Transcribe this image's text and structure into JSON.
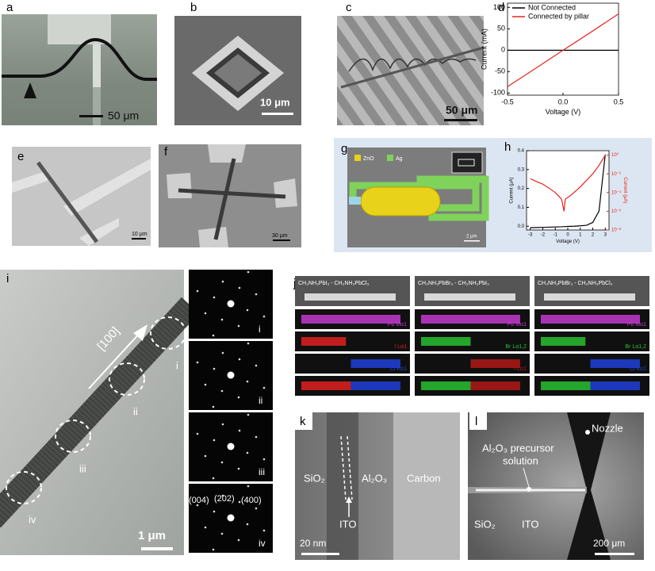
{
  "panels": {
    "a": {
      "label": "a",
      "scale_bar": "50 μm"
    },
    "b": {
      "label": "b",
      "scale_bar": "10 μm"
    },
    "c": {
      "label": "c",
      "scale_bar": "50 μm"
    },
    "e": {
      "label": "e",
      "scale_bar": "10 μm"
    },
    "f": {
      "label": "f",
      "scale_bar": "30 μm"
    },
    "g": {
      "label": "g",
      "legend": [
        "ZnO",
        "Ag"
      ],
      "scale_bar": "2 μm"
    },
    "i": {
      "label": "i",
      "direction": "[100]",
      "regions": [
        "i",
        "ii",
        "iii",
        "iv"
      ],
      "scale_bar": "1 μm",
      "saed_labels": [
        "i",
        "ii",
        "iii",
        "iv"
      ],
      "miller_indices": [
        "(004)",
        "(202)",
        "(400)"
      ]
    },
    "j": {
      "label": "j",
      "columns": [
        {
          "title": "CH₃NH₃PbI₃ - CH₃NH₃PbCl₃",
          "maps": [
            "Pb Mα1",
            "I Lα1",
            "Cl Kα1"
          ]
        },
        {
          "title": "CH₃NH₃PbBr₃ - CH₃NH₃PbI₃",
          "maps": [
            "Pb Mα1",
            "Br Lα1,2",
            "I Lα1"
          ]
        },
        {
          "title": "CH₃NH₃PbBr₃ - CH₃NH₃PbCl₃",
          "maps": [
            "Pb Mα1",
            "Br Lα1,2",
            "Cl Kα1"
          ]
        }
      ]
    },
    "k": {
      "label": "k",
      "regions": [
        "SiO₂",
        "Al₂O₃",
        "Carbon"
      ],
      "pointer": "ITO",
      "scale_bar": "20 nm"
    },
    "l": {
      "label": "l",
      "pointers": [
        "Al₂O₃ precursor",
        "solution",
        "Nozzle"
      ],
      "regions": [
        "SiO₂",
        "ITO"
      ],
      "scale_bar": "200 μm"
    }
  },
  "chart_data": [
    {
      "type": "line",
      "panel_label": "d",
      "xlabel": "Voltage (V)",
      "ylabel": "Current (mA)",
      "x": [
        -0.5,
        -0.25,
        0,
        0.25,
        0.5
      ],
      "series": [
        {
          "name": "Not Connected",
          "color": "#000000",
          "values": [
            0,
            0,
            0,
            0,
            0
          ]
        },
        {
          "name": "Connected by pillar",
          "color": "#e8231c",
          "values": [
            -85,
            -43,
            0,
            42,
            85
          ]
        }
      ],
      "xlim": [
        -0.5,
        0.5
      ],
      "xticks": [
        -0.5,
        {
          "value": 0,
          "label": "0.0"
        },
        0.5
      ],
      "ylim": [
        -105,
        110
      ],
      "yticks": [
        -100,
        -50,
        0,
        50,
        100
      ],
      "legend": "upper left"
    },
    {
      "type": "line",
      "panel_label": "h",
      "xlabel": "Voltage (V)",
      "ylabel": "Current (μA)",
      "y2label": "Current (μA)",
      "x": [
        -3,
        -2.5,
        -2,
        -1.5,
        -1,
        -0.5,
        -0.3,
        -0.2,
        0,
        0.5,
        1,
        1.5,
        2,
        2.5,
        3
      ],
      "series": [
        {
          "color": "#000000",
          "values": [
            -0.008,
            -0.007,
            -0.006,
            -0.005,
            -0.004,
            -0.003,
            -0.002,
            -0.002,
            -0.001,
            0,
            0.002,
            0.005,
            0.02,
            0.08,
            0.38
          ]
        },
        {
          "color": "#e8231c",
          "axis": "y2",
          "values": [
            0.003,
            0.0015,
            0.0008,
            0.0003,
            0.0001,
            2e-05,
            1e-06,
            2e-05,
            3e-05,
            0.0001,
            0.0004,
            0.002,
            0.01,
            0.08,
            1
          ]
        }
      ],
      "xlim": [
        -3.3,
        3.3
      ],
      "xticks": [
        -3,
        -2,
        -1,
        0,
        1,
        2,
        3
      ],
      "ylim": [
        -0.02,
        0.4
      ],
      "yticks": [
        {
          "value": 0,
          "label": "0.0"
        },
        0.1,
        0.2,
        0.3,
        0.4
      ],
      "y2log": true,
      "y2lim": [
        1e-08,
        3
      ],
      "y2ticks": [
        {
          "value": 1e-08,
          "label": "10⁻⁸"
        },
        {
          "value": 1e-06,
          "label": "10⁻⁶"
        },
        {
          "value": 0.0001,
          "label": "10⁻⁴"
        },
        {
          "value": 0.01,
          "label": "10⁻²"
        },
        {
          "value": 1,
          "label": "10⁰"
        }
      ]
    }
  ]
}
